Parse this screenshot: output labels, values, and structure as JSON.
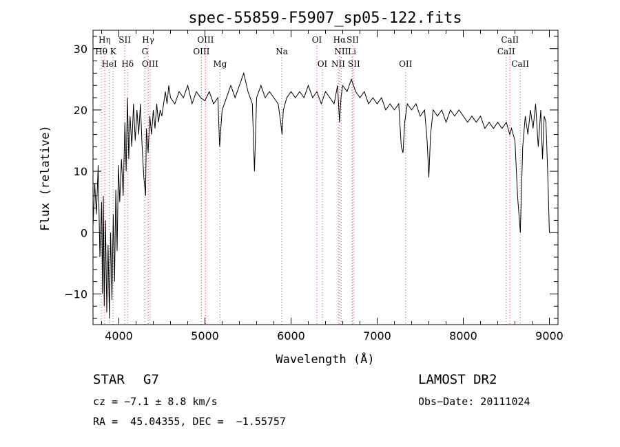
{
  "chart_data": {
    "type": "line",
    "title": "spec-55859-F5907_sp05-122.fits",
    "xlabel": "Wavelength (Å)",
    "ylabel": "Flux (relative)",
    "xlim": [
      3700,
      9100
    ],
    "ylim": [
      -15,
      33
    ],
    "xticks": [
      "4000",
      "5000",
      "6000",
      "7000",
      "8000",
      "9000"
    ],
    "yticks": [
      "−10",
      "0",
      "10",
      "20",
      "30"
    ],
    "grid": false,
    "series": [
      {
        "values": [
          [
            3700,
            1
          ],
          [
            3720,
            8
          ],
          [
            3740,
            3
          ],
          [
            3760,
            11
          ],
          [
            3780,
            -4
          ],
          [
            3800,
            5
          ],
          [
            3810,
            -10
          ],
          [
            3820,
            6
          ],
          [
            3830,
            -12
          ],
          [
            3845,
            2
          ],
          [
            3860,
            -13
          ],
          [
            3875,
            -2
          ],
          [
            3890,
            -14
          ],
          [
            3905,
            0
          ],
          [
            3920,
            -11
          ],
          [
            3935,
            3
          ],
          [
            3950,
            -8
          ],
          [
            3965,
            7
          ],
          [
            3980,
            -3
          ],
          [
            3995,
            11
          ],
          [
            4010,
            5
          ],
          [
            4030,
            12
          ],
          [
            4050,
            6
          ],
          [
            4070,
            18
          ],
          [
            4085,
            10
          ],
          [
            4100,
            22
          ],
          [
            4115,
            12
          ],
          [
            4130,
            19
          ],
          [
            4150,
            14
          ],
          [
            4170,
            21
          ],
          [
            4190,
            15
          ],
          [
            4210,
            20
          ],
          [
            4230,
            16
          ],
          [
            4250,
            21
          ],
          [
            4270,
            14
          ],
          [
            4290,
            9
          ],
          [
            4310,
            6
          ],
          [
            4320,
            17
          ],
          [
            4340,
            13
          ],
          [
            4360,
            19
          ],
          [
            4380,
            16
          ],
          [
            4400,
            20
          ],
          [
            4420,
            17
          ],
          [
            4440,
            21
          ],
          [
            4460,
            18
          ],
          [
            4480,
            20
          ],
          [
            4500,
            19
          ],
          [
            4520,
            21
          ],
          [
            4540,
            23
          ],
          [
            4560,
            21
          ],
          [
            4580,
            24
          ],
          [
            4600,
            22
          ],
          [
            4650,
            21
          ],
          [
            4700,
            23
          ],
          [
            4750,
            22
          ],
          [
            4800,
            24
          ],
          [
            4850,
            21
          ],
          [
            4900,
            23
          ],
          [
            4950,
            22
          ],
          [
            5000,
            21.5
          ],
          [
            5050,
            23
          ],
          [
            5100,
            21
          ],
          [
            5150,
            22
          ],
          [
            5170,
            14
          ],
          [
            5185,
            17
          ],
          [
            5200,
            20
          ],
          [
            5250,
            22
          ],
          [
            5300,
            24
          ],
          [
            5350,
            22
          ],
          [
            5400,
            24
          ],
          [
            5450,
            26
          ],
          [
            5500,
            23
          ],
          [
            5550,
            21
          ],
          [
            5575,
            10
          ],
          [
            5600,
            22
          ],
          [
            5650,
            24
          ],
          [
            5700,
            22
          ],
          [
            5750,
            23
          ],
          [
            5800,
            22
          ],
          [
            5850,
            21
          ],
          [
            5880,
            18
          ],
          [
            5895,
            16
          ],
          [
            5910,
            20
          ],
          [
            5950,
            22
          ],
          [
            6000,
            23
          ],
          [
            6050,
            22
          ],
          [
            6100,
            23
          ],
          [
            6150,
            22
          ],
          [
            6200,
            24
          ],
          [
            6250,
            22
          ],
          [
            6300,
            23
          ],
          [
            6350,
            21
          ],
          [
            6400,
            23
          ],
          [
            6450,
            22
          ],
          [
            6500,
            21
          ],
          [
            6540,
            24
          ],
          [
            6563,
            18
          ],
          [
            6580,
            22
          ],
          [
            6600,
            24
          ],
          [
            6650,
            23
          ],
          [
            6700,
            25
          ],
          [
            6750,
            23
          ],
          [
            6800,
            22
          ],
          [
            6850,
            23
          ],
          [
            6900,
            21
          ],
          [
            6950,
            22
          ],
          [
            7000,
            21
          ],
          [
            7050,
            22
          ],
          [
            7100,
            20
          ],
          [
            7150,
            21
          ],
          [
            7200,
            20
          ],
          [
            7250,
            21
          ],
          [
            7280,
            14
          ],
          [
            7300,
            13
          ],
          [
            7320,
            18
          ],
          [
            7350,
            21
          ],
          [
            7400,
            20
          ],
          [
            7450,
            21
          ],
          [
            7500,
            19
          ],
          [
            7550,
            20
          ],
          [
            7580,
            15
          ],
          [
            7600,
            9
          ],
          [
            7620,
            16
          ],
          [
            7650,
            20
          ],
          [
            7700,
            19
          ],
          [
            7750,
            20
          ],
          [
            7800,
            18
          ],
          [
            7850,
            20
          ],
          [
            7900,
            19
          ],
          [
            7950,
            20
          ],
          [
            8000,
            19
          ],
          [
            8050,
            18
          ],
          [
            8100,
            19
          ],
          [
            8150,
            18
          ],
          [
            8200,
            19
          ],
          [
            8250,
            17
          ],
          [
            8300,
            18
          ],
          [
            8350,
            17
          ],
          [
            8400,
            18
          ],
          [
            8450,
            17
          ],
          [
            8500,
            18
          ],
          [
            8540,
            16
          ],
          [
            8560,
            17
          ],
          [
            8600,
            15
          ],
          [
            8630,
            6
          ],
          [
            8662,
            0
          ],
          [
            8690,
            14
          ],
          [
            8720,
            19
          ],
          [
            8750,
            16
          ],
          [
            8780,
            20
          ],
          [
            8810,
            17
          ],
          [
            8840,
            21
          ],
          [
            8870,
            14
          ],
          [
            8900,
            20
          ],
          [
            8920,
            12
          ],
          [
            8940,
            19
          ],
          [
            8960,
            18
          ],
          [
            8980,
            10
          ],
          [
            9000,
            0
          ]
        ]
      }
    ],
    "lines": [
      {
        "label": "Hη",
        "x": 3835,
        "row": 0,
        "color": "#d04040"
      },
      {
        "label": "Hθ",
        "x": 3797,
        "row": 1,
        "color": "#d04040"
      },
      {
        "label": "HeI",
        "x": 3889,
        "row": 2,
        "color": "#d04040"
      },
      {
        "label": "K",
        "x": 3934,
        "row": 1,
        "color": "#d04040"
      },
      {
        "label": "SII",
        "x": 4069,
        "row": 0,
        "color": "#d04040"
      },
      {
        "label": "Hδ",
        "x": 4102,
        "row": 2,
        "color": "#d04040"
      },
      {
        "label": "Hγ",
        "x": 4341,
        "row": 0,
        "color": "#d04040"
      },
      {
        "label": "G",
        "x": 4304,
        "row": 1,
        "color": "#d04040"
      },
      {
        "label": "OIII",
        "x": 4363,
        "row": 2,
        "color": "#d04040"
      },
      {
        "label": "OIII",
        "x": 5007,
        "row": 0,
        "color": "#d04040"
      },
      {
        "label": "OIII",
        "x": 4959,
        "row": 1,
        "color": "#d04040"
      },
      {
        "label": "Mg",
        "x": 5175,
        "row": 2,
        "color": "#d04040"
      },
      {
        "label": "Na",
        "x": 5893,
        "row": 1,
        "color": "#d04040"
      },
      {
        "label": "OI",
        "x": 6300,
        "row": 0,
        "color": "#d04040"
      },
      {
        "label": "OI",
        "x": 6364,
        "row": 2,
        "color": "#d04040"
      },
      {
        "label": "Hα",
        "x": 6563,
        "row": 0,
        "color": "#d04040"
      },
      {
        "label": "SII",
        "x": 6716,
        "row": 0,
        "color": "#d04040"
      },
      {
        "label": "NII",
        "x": 6583,
        "row": 1,
        "color": "#d04040"
      },
      {
        "label": "Li",
        "x": 6708,
        "row": 1,
        "color": "#d04040"
      },
      {
        "label": "NII",
        "x": 6548,
        "row": 2,
        "color": "#d04040"
      },
      {
        "label": "SII",
        "x": 6731,
        "row": 2,
        "color": "#d04040"
      },
      {
        "label": "OII",
        "x": 7330,
        "row": 2,
        "color": "#d04040"
      },
      {
        "label": "CaII",
        "x": 8542,
        "row": 0,
        "color": "#d04040"
      },
      {
        "label": "CaII",
        "x": 8498,
        "row": 1,
        "color": "#d04040"
      },
      {
        "label": "CaII",
        "x": 8662,
        "row": 2,
        "color": "#d04040"
      }
    ]
  },
  "info": {
    "class": "STAR",
    "subclass": "G7",
    "survey": "LAMOST DR2",
    "cz": "cz = −7.1 ± 8.8 km/s",
    "obsdate": "Obs−Date: 20111024",
    "radec": "RA =  45.04355, DEC =  −1.55757"
  }
}
